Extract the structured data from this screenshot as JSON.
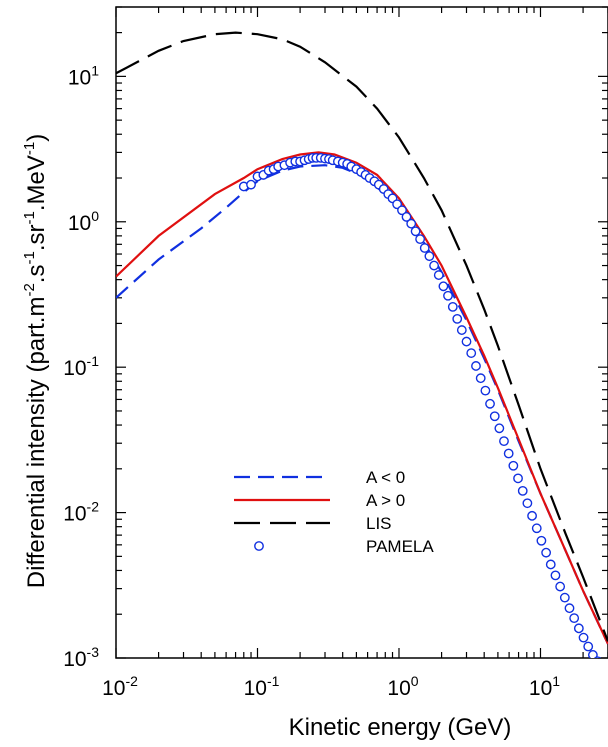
{
  "chart_data": {
    "type": "line",
    "x_scale": "log",
    "y_scale": "log",
    "xlim": [
      0.01,
      30
    ],
    "ylim": [
      0.001,
      30
    ],
    "xlabel": "Kinetic energy (GeV)",
    "ylabel_parts": [
      "Differential intensity (part.m",
      "-2",
      ".s",
      "-1",
      ".sr",
      "-1",
      ".MeV",
      "-1",
      ")"
    ],
    "x_ticks": [
      {
        "base": "10",
        "exp": "-2",
        "value": 0.01
      },
      {
        "base": "10",
        "exp": "-1",
        "value": 0.1
      },
      {
        "base": "10",
        "exp": "0",
        "value": 1
      },
      {
        "base": "10",
        "exp": "1",
        "value": 10
      }
    ],
    "y_ticks": [
      {
        "base": "10",
        "exp": "-3",
        "value": 0.001
      },
      {
        "base": "10",
        "exp": "-2",
        "value": 0.01
      },
      {
        "base": "10",
        "exp": "-1",
        "value": 0.1
      },
      {
        "base": "10",
        "exp": "0",
        "value": 1
      },
      {
        "base": "10",
        "exp": "1",
        "value": 10
      }
    ],
    "grid": false,
    "legend_position": "lower-center",
    "series": [
      {
        "name": "A < 0",
        "style": "dashed",
        "color": "#1030e0",
        "x": [
          0.01,
          0.02,
          0.04,
          0.06,
          0.08,
          0.1,
          0.15,
          0.2,
          0.3,
          0.4,
          0.5,
          0.6,
          0.8,
          1.0,
          1.5,
          2,
          3,
          4,
          5,
          7,
          10,
          15,
          20,
          30
        ],
        "y": [
          0.3,
          0.55,
          0.9,
          1.25,
          1.6,
          1.9,
          2.25,
          2.4,
          2.45,
          2.35,
          2.15,
          1.95,
          1.55,
          1.25,
          0.72,
          0.45,
          0.21,
          0.115,
          0.07,
          0.031,
          0.0135,
          0.0055,
          0.0029,
          0.00125
        ]
      },
      {
        "name": "A > 0",
        "style": "solid",
        "color": "#e01010",
        "x": [
          0.01,
          0.02,
          0.05,
          0.08,
          0.1,
          0.15,
          0.2,
          0.27,
          0.35,
          0.5,
          0.7,
          1.0,
          1.5,
          2,
          3,
          4,
          5,
          7,
          10,
          15,
          20,
          30
        ],
        "y": [
          0.42,
          0.8,
          1.55,
          2.0,
          2.3,
          2.7,
          2.9,
          3.0,
          2.9,
          2.55,
          2.1,
          1.45,
          0.8,
          0.5,
          0.22,
          0.12,
          0.072,
          0.032,
          0.0135,
          0.0055,
          0.0029,
          0.00125
        ]
      },
      {
        "name": "LIS",
        "style": "long-dashed",
        "color": "#000000",
        "x": [
          0.01,
          0.02,
          0.03,
          0.05,
          0.07,
          0.1,
          0.15,
          0.2,
          0.3,
          0.5,
          0.7,
          1.0,
          1.5,
          2,
          3,
          4,
          5,
          7,
          10,
          15,
          20,
          30
        ],
        "y": [
          10.5,
          15.0,
          17.5,
          19.5,
          20.0,
          19.5,
          18.0,
          16.0,
          12.5,
          8.5,
          6.0,
          3.8,
          2.0,
          1.2,
          0.5,
          0.25,
          0.14,
          0.055,
          0.02,
          0.0072,
          0.0036,
          0.0013
        ]
      },
      {
        "name": "PAMELA",
        "style": "markers",
        "color": "#1030e0",
        "x": [
          0.08,
          0.09,
          0.1,
          0.11,
          0.12,
          0.13,
          0.14,
          0.155,
          0.17,
          0.185,
          0.2,
          0.215,
          0.23,
          0.245,
          0.26,
          0.28,
          0.3,
          0.32,
          0.34,
          0.37,
          0.4,
          0.43,
          0.46,
          0.5,
          0.54,
          0.58,
          0.62,
          0.67,
          0.72,
          0.78,
          0.84,
          0.9,
          0.97,
          1.05,
          1.13,
          1.22,
          1.31,
          1.41,
          1.52,
          1.64,
          1.77,
          1.91,
          2.06,
          2.22,
          2.4,
          2.58,
          2.78,
          3.0,
          3.24,
          3.5,
          3.78,
          4.08,
          4.4,
          4.75,
          5.12,
          5.52,
          5.96,
          6.43,
          6.94,
          7.49,
          8.08,
          8.72,
          9.41,
          10.15,
          10.96,
          11.82,
          12.76,
          13.77,
          14.86,
          16.03,
          17.3,
          18.67,
          20.15,
          21.74,
          23.46,
          25.32,
          27.32,
          29.5
        ],
        "y": [
          1.75,
          1.8,
          2.05,
          2.1,
          2.25,
          2.3,
          2.4,
          2.45,
          2.55,
          2.6,
          2.6,
          2.65,
          2.7,
          2.75,
          2.75,
          2.75,
          2.72,
          2.7,
          2.65,
          2.6,
          2.55,
          2.5,
          2.4,
          2.3,
          2.2,
          2.1,
          2.0,
          1.9,
          1.8,
          1.68,
          1.55,
          1.45,
          1.32,
          1.2,
          1.08,
          0.97,
          0.86,
          0.76,
          0.66,
          0.58,
          0.5,
          0.43,
          0.36,
          0.31,
          0.26,
          0.215,
          0.18,
          0.15,
          0.125,
          0.102,
          0.084,
          0.069,
          0.056,
          0.046,
          0.038,
          0.031,
          0.0255,
          0.021,
          0.0172,
          0.0141,
          0.0116,
          0.0095,
          0.0078,
          0.0064,
          0.0053,
          0.0044,
          0.0037,
          0.0031,
          0.0026,
          0.0022,
          0.00188,
          0.0016,
          0.00138,
          0.0012,
          0.00105,
          0.00095,
          0.00088,
          0.00082
        ]
      }
    ]
  },
  "legend": {
    "entries": [
      {
        "label": "A < 0"
      },
      {
        "label": "A > 0"
      },
      {
        "label": "LIS"
      },
      {
        "label": "PAMELA"
      }
    ]
  }
}
